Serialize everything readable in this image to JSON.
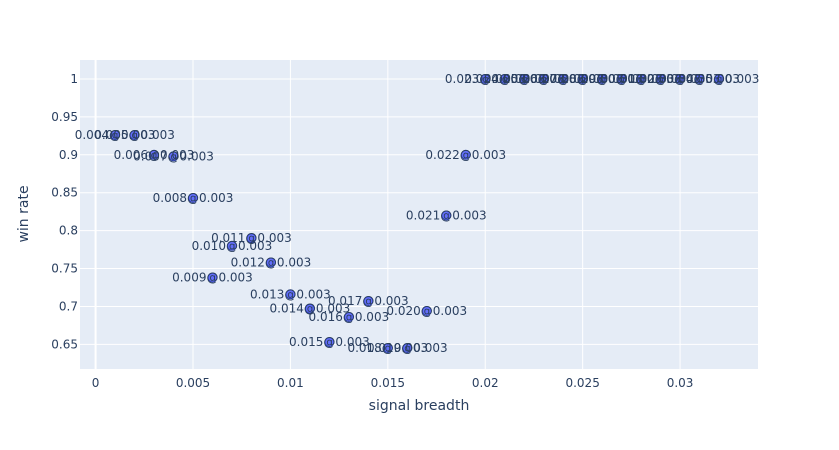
{
  "chart_data": {
    "type": "scatter",
    "title": "",
    "xlabel": "signal breadth",
    "ylabel": "win rate",
    "xlim": [
      -0.0008,
      0.034
    ],
    "ylim": [
      0.6175,
      1.025
    ],
    "xticks": [
      "0",
      "0.005",
      "0.01",
      "0.015",
      "0.02",
      "0.025",
      "0.03"
    ],
    "xtick_values": [
      0,
      0.005,
      0.01,
      0.015,
      0.02,
      0.025,
      0.03
    ],
    "yticks": [
      "0.65",
      "0.7",
      "0.75",
      "0.8",
      "0.85",
      "0.9",
      "0.95",
      "1"
    ],
    "ytick_values": [
      0.65,
      0.7,
      0.75,
      0.8,
      0.85,
      0.9,
      0.95,
      1
    ],
    "grid": true,
    "colors": {
      "plot_bg": "#e5ecf6",
      "grid": "#ffffff",
      "marker": "#636efa",
      "marker_edge": "#2a3f9f",
      "text": "#2a3f5f"
    },
    "points": [
      {
        "x": 0.001,
        "y": 0.926,
        "label": "0.004@0.003"
      },
      {
        "x": 0.002,
        "y": 0.926,
        "label": "0.005@0.003"
      },
      {
        "x": 0.003,
        "y": 0.9,
        "label": "0.006@0.003"
      },
      {
        "x": 0.004,
        "y": 0.898,
        "label": "0.007@0.003"
      },
      {
        "x": 0.005,
        "y": 0.843,
        "label": "0.008@0.003"
      },
      {
        "x": 0.006,
        "y": 0.738,
        "label": "0.009@0.003"
      },
      {
        "x": 0.007,
        "y": 0.78,
        "label": "0.010@0.003"
      },
      {
        "x": 0.008,
        "y": 0.79,
        "label": "0.011@0.003"
      },
      {
        "x": 0.009,
        "y": 0.758,
        "label": "0.012@0.003"
      },
      {
        "x": 0.01,
        "y": 0.716,
        "label": "0.013@0.003"
      },
      {
        "x": 0.011,
        "y": 0.697,
        "label": "0.014@0.003"
      },
      {
        "x": 0.012,
        "y": 0.653,
        "label": "0.015@0.003"
      },
      {
        "x": 0.013,
        "y": 0.686,
        "label": "0.016@0.003"
      },
      {
        "x": 0.014,
        "y": 0.707,
        "label": "0.017@0.003"
      },
      {
        "x": 0.015,
        "y": 0.645,
        "label": "0.018@0.003"
      },
      {
        "x": 0.016,
        "y": 0.645,
        "label": "0.019@0.003"
      },
      {
        "x": 0.017,
        "y": 0.694,
        "label": "0.020@0.003"
      },
      {
        "x": 0.018,
        "y": 0.82,
        "label": "0.021@0.003"
      },
      {
        "x": 0.019,
        "y": 0.9,
        "label": "0.022@0.003"
      },
      {
        "x": 0.02,
        "y": 1,
        "label": "0.023@0.003"
      },
      {
        "x": 0.021,
        "y": 1,
        "label": "0.024@0.003"
      },
      {
        "x": 0.022,
        "y": 1,
        "label": "0.025@0.003"
      },
      {
        "x": 0.023,
        "y": 1,
        "label": "0.026@0.003"
      },
      {
        "x": 0.024,
        "y": 1,
        "label": "0.027@0.003"
      },
      {
        "x": 0.025,
        "y": 1,
        "label": "0.028@0.003"
      },
      {
        "x": 0.026,
        "y": 1,
        "label": "0.029@0.003"
      },
      {
        "x": 0.027,
        "y": 1,
        "label": "0.030@0.003"
      },
      {
        "x": 0.028,
        "y": 1,
        "label": "0.031@0.003"
      },
      {
        "x": 0.029,
        "y": 1,
        "label": "0.032@0.003"
      },
      {
        "x": 0.03,
        "y": 1,
        "label": "0.033@0.003"
      },
      {
        "x": 0.031,
        "y": 1,
        "label": "0.034@0.003"
      },
      {
        "x": 0.032,
        "y": 1,
        "label": "0.035@0.003"
      }
    ]
  }
}
